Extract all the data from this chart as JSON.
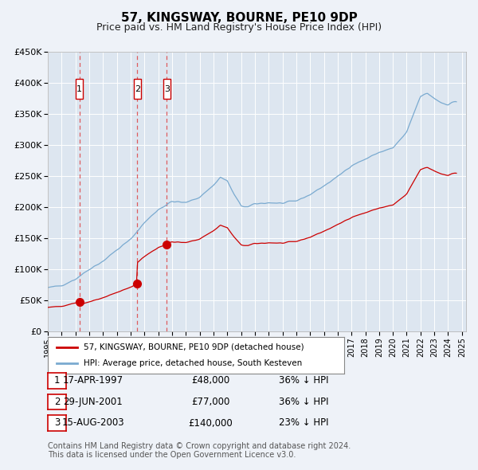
{
  "title": "57, KINGSWAY, BOURNE, PE10 9DP",
  "subtitle": "Price paid vs. HM Land Registry's House Price Index (HPI)",
  "title_fontsize": 11,
  "subtitle_fontsize": 9,
  "bg_color": "#eef2f8",
  "plot_bg_color": "#dde6f0",
  "grid_color": "#ffffff",
  "ylim": [
    0,
    450000
  ],
  "yticks": [
    0,
    50000,
    100000,
    150000,
    200000,
    250000,
    300000,
    350000,
    400000,
    450000
  ],
  "ytick_labels": [
    "£0",
    "£50K",
    "£100K",
    "£150K",
    "£200K",
    "£250K",
    "£300K",
    "£350K",
    "£400K",
    "£450K"
  ],
  "xlim_start": 1995.3,
  "xlim_end": 2025.3,
  "xticks": [
    1995,
    1996,
    1997,
    1998,
    1999,
    2000,
    2001,
    2002,
    2003,
    2004,
    2005,
    2006,
    2007,
    2008,
    2009,
    2010,
    2011,
    2012,
    2013,
    2014,
    2015,
    2016,
    2017,
    2018,
    2019,
    2020,
    2021,
    2022,
    2023,
    2024,
    2025
  ],
  "sale_dates": [
    1997.29,
    2001.49,
    2003.62
  ],
  "sale_prices": [
    48000,
    77000,
    140000
  ],
  "sale_color": "#cc0000",
  "sale_marker_size": 7,
  "legend_sale_label": "57, KINGSWAY, BOURNE, PE10 9DP (detached house)",
  "legend_hpi_label": "HPI: Average price, detached house, South Kesteven",
  "hpi_color": "#7aaad0",
  "sale_line_color": "#cc0000",
  "dashed_line_color": "#dd4444",
  "transaction_labels": [
    "1",
    "2",
    "3"
  ],
  "transaction_date_strs": [
    "17-APR-1997",
    "29-JUN-2001",
    "15-AUG-2003"
  ],
  "transaction_price_strs": [
    "£48,000",
    "£77,000",
    "£140,000"
  ],
  "transaction_pct_strs": [
    "36% ↓ HPI",
    "36% ↓ HPI",
    "23% ↓ HPI"
  ],
  "footer_text": "Contains HM Land Registry data © Crown copyright and database right 2024.\nThis data is licensed under the Open Government Licence v3.0.",
  "footnote_fontsize": 7
}
